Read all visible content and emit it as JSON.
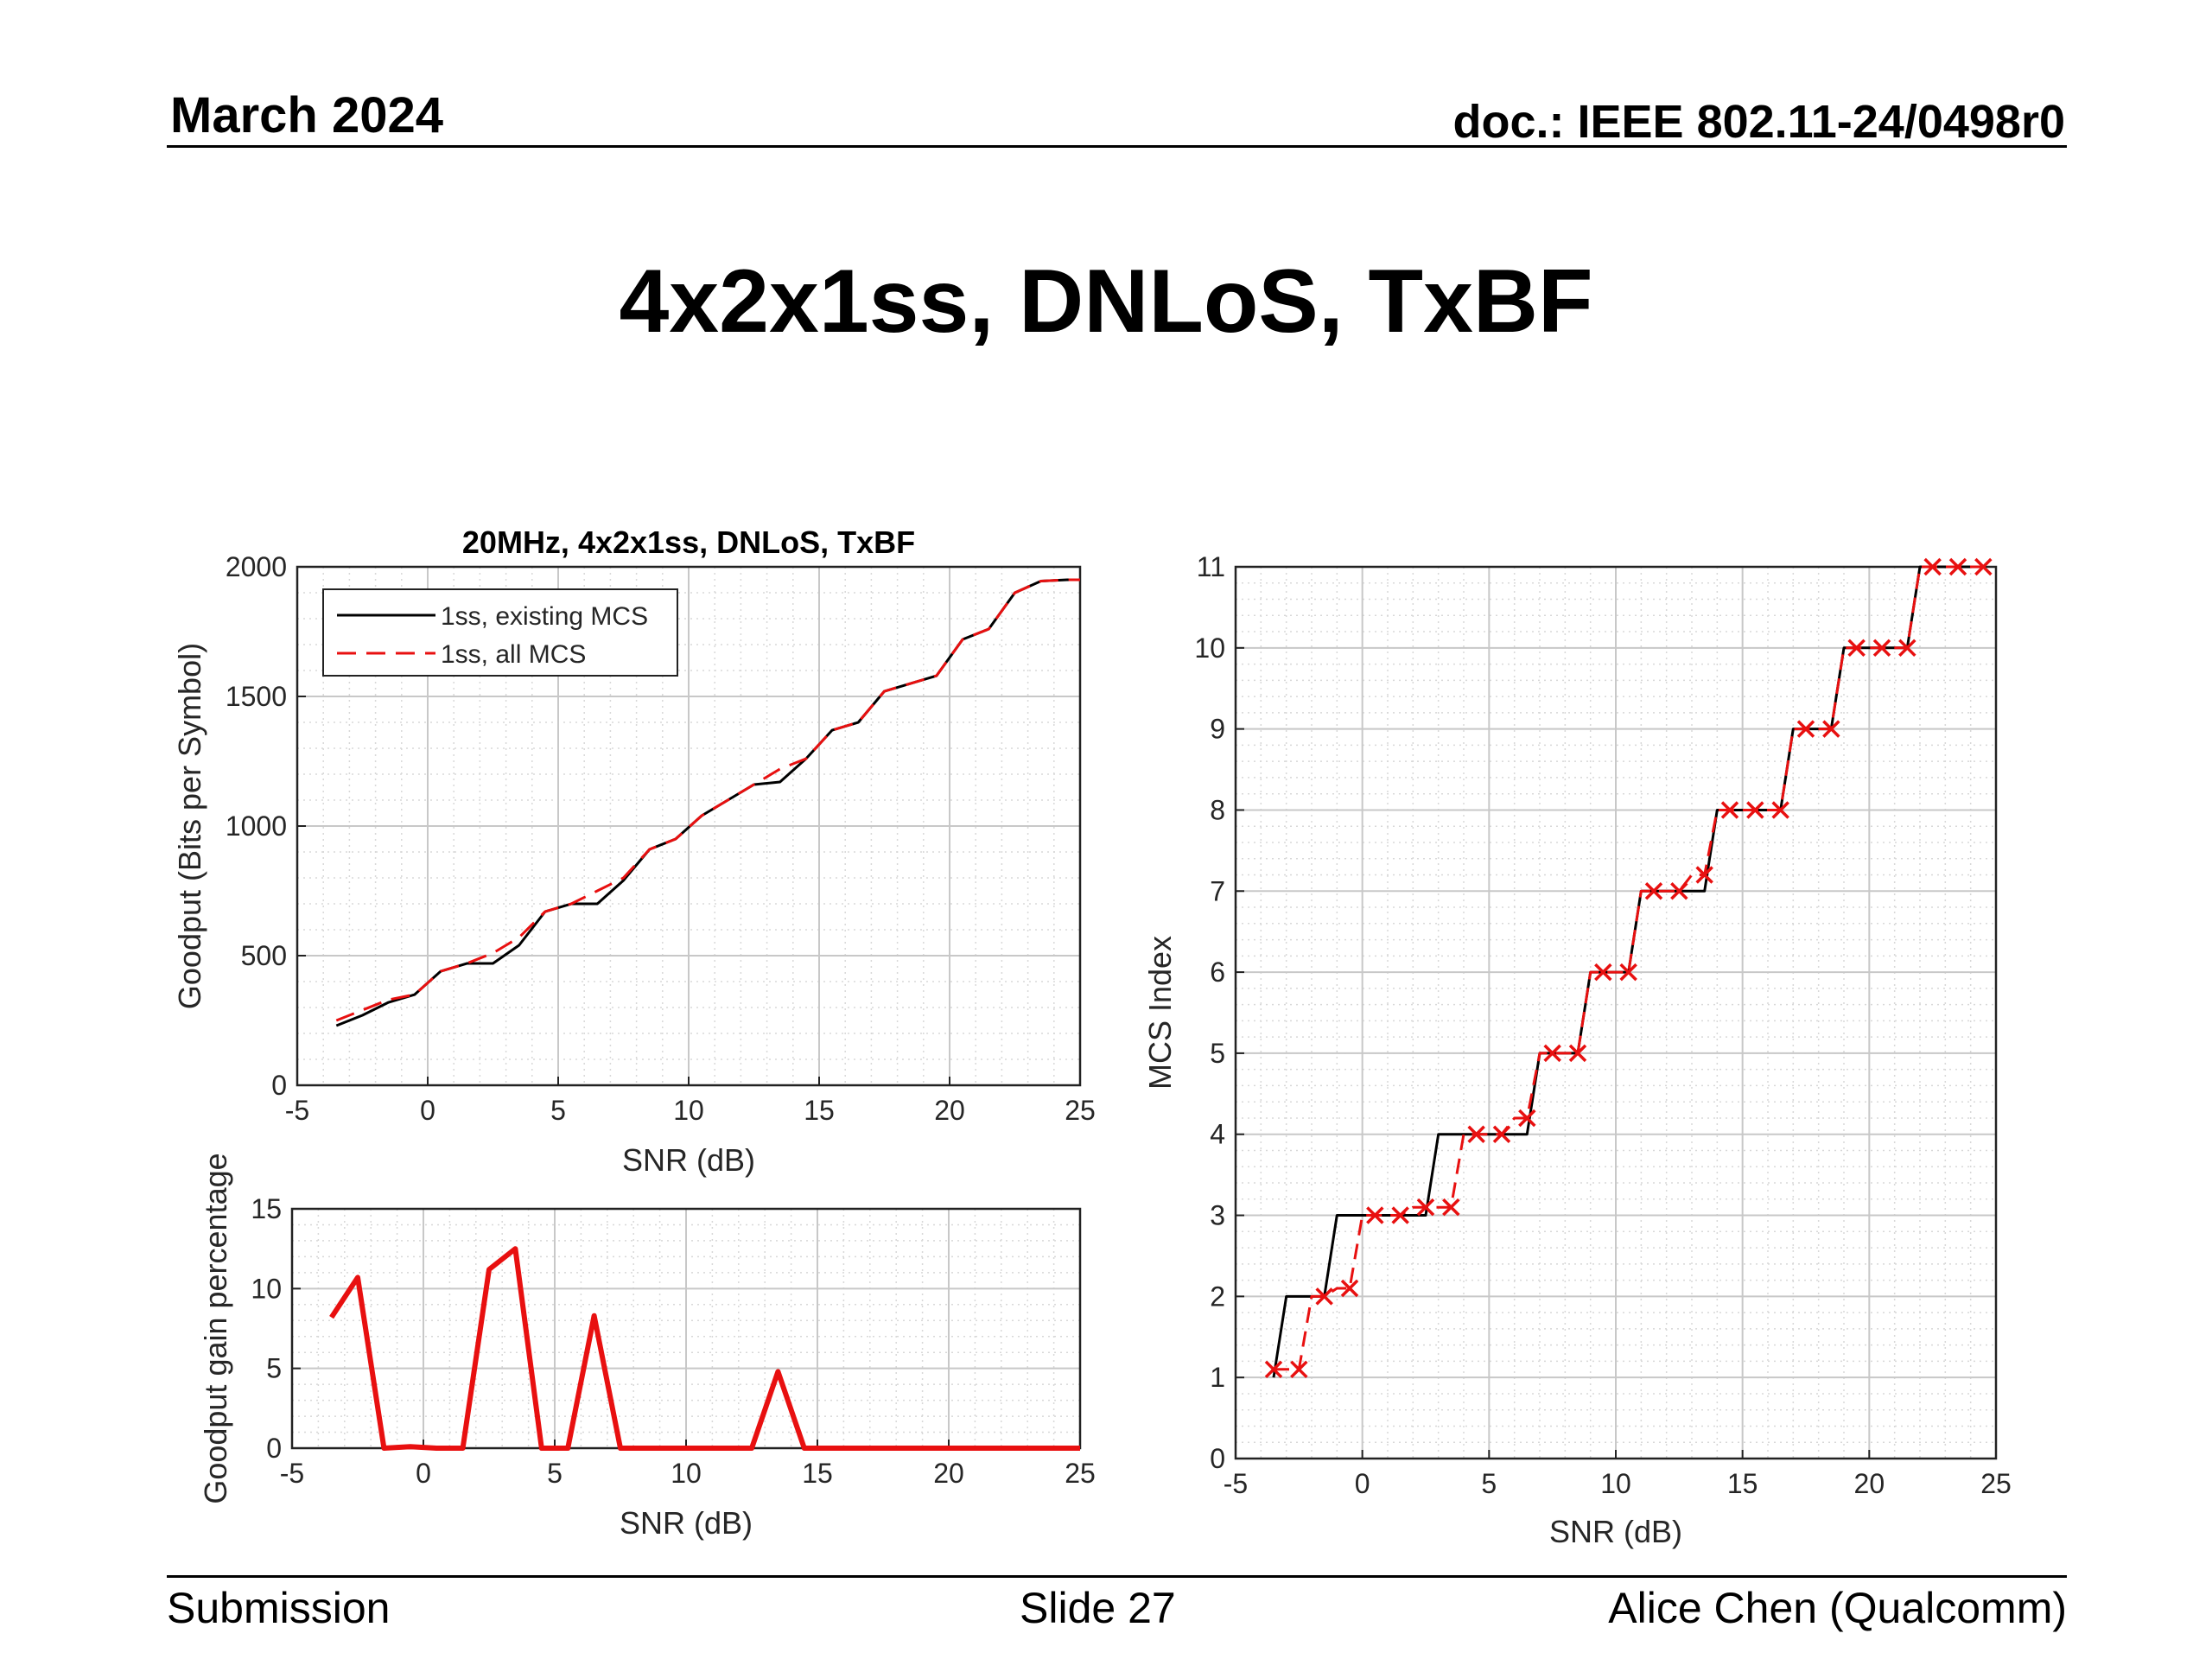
{
  "header": {
    "date": "March 2024",
    "doc": "doc.: IEEE 802.11-24/0498r0"
  },
  "slide": {
    "title": "4x2x1ss, DNLoS, TxBF"
  },
  "footer": {
    "left": "Submission",
    "center": "Slide 27",
    "right": "Alice Chen (Qualcomm)"
  },
  "colors": {
    "existing": "#000000",
    "all": "#e81010",
    "grid": "#c8c8c8"
  },
  "chart_data": [
    {
      "id": "goodput",
      "type": "line",
      "title": "20MHz, 4x2x1ss, DNLoS, TxBF",
      "xlabel": "SNR (dB)",
      "ylabel": "Goodput (Bits per Symbol)",
      "xlim": [
        -5,
        25
      ],
      "ylim": [
        0,
        2000
      ],
      "xticks": [
        -5,
        0,
        5,
        10,
        15,
        20,
        25
      ],
      "yticks": [
        0,
        500,
        1000,
        1500,
        2000
      ],
      "grid": true,
      "legend": "top-left",
      "x": [
        -3.5,
        -2.5,
        -1.5,
        -0.5,
        0.5,
        1.5,
        2.5,
        3.5,
        4.5,
        5.5,
        6.5,
        7.5,
        8.5,
        9.5,
        10.5,
        11.5,
        12.5,
        13.5,
        14.5,
        15.5,
        16.5,
        17.5,
        18.5,
        19.5,
        20.5,
        21.5,
        22.5,
        23.5,
        24.5,
        25
      ],
      "series": [
        {
          "name": "1ss, existing MCS",
          "style": "solid",
          "values": [
            230,
            270,
            320,
            350,
            440,
            470,
            470,
            540,
            670,
            700,
            700,
            790,
            910,
            950,
            1040,
            1100,
            1160,
            1170,
            1260,
            1370,
            1400,
            1520,
            1550,
            1580,
            1720,
            1760,
            1900,
            1945,
            1950,
            1950
          ]
        },
        {
          "name": "1ss, all MCS",
          "style": "dashed",
          "values": [
            250,
            290,
            330,
            350,
            440,
            470,
            510,
            570,
            670,
            700,
            750,
            800,
            910,
            950,
            1040,
            1100,
            1160,
            1220,
            1260,
            1370,
            1400,
            1520,
            1550,
            1580,
            1720,
            1760,
            1900,
            1945,
            1950,
            1950
          ]
        }
      ]
    },
    {
      "id": "gain",
      "type": "line",
      "title": "",
      "xlabel": "SNR (dB)",
      "ylabel": "Goodput gain percentage",
      "xlim": [
        -5,
        25
      ],
      "ylim": [
        0,
        15
      ],
      "xticks": [
        -5,
        0,
        5,
        10,
        15,
        20,
        25
      ],
      "yticks": [
        0,
        5,
        10,
        15
      ],
      "grid": true,
      "x": [
        -3.5,
        -2.5,
        -1.5,
        -0.5,
        0.5,
        1.5,
        2.5,
        3.5,
        4.5,
        5.5,
        6.5,
        7.5,
        8.5,
        9.5,
        10.5,
        11.5,
        12.5,
        13.5,
        14.5,
        15.5,
        16.5,
        17.5,
        18.5,
        19.5,
        20.5,
        21.5,
        22.5,
        23.5,
        24.5,
        25
      ],
      "series": [
        {
          "name": "",
          "style": "solid",
          "values": [
            8.2,
            10.7,
            0,
            0.1,
            0,
            0,
            11.2,
            12.5,
            0,
            0,
            8.3,
            0,
            0,
            0,
            0,
            0,
            0,
            4.8,
            0,
            0,
            0,
            0,
            0,
            0,
            0,
            0,
            0,
            0,
            0,
            0
          ]
        }
      ]
    },
    {
      "id": "mcs",
      "type": "line",
      "title": "",
      "xlabel": "SNR (dB)",
      "ylabel": "MCS Index",
      "xlim": [
        -5,
        25
      ],
      "ylim": [
        0,
        11
      ],
      "xticks": [
        -5,
        0,
        5,
        10,
        15,
        20,
        25
      ],
      "yticks": [
        0,
        1,
        2,
        3,
        4,
        5,
        6,
        7,
        8,
        9,
        10,
        11
      ],
      "grid": true,
      "x": [
        -3.5,
        -2.5,
        -1.5,
        -0.5,
        0.5,
        1.5,
        2.5,
        3.5,
        4.5,
        5.5,
        6.5,
        7.5,
        8.5,
        9.5,
        10.5,
        11.5,
        12.5,
        13.5,
        14.5,
        15.5,
        16.5,
        17.5,
        18.5,
        19.5,
        20.5,
        21.5,
        22.5,
        23.5,
        24.5
      ],
      "series": [
        {
          "name": "existing MCS",
          "style": "solid",
          "values": [
            1,
            2,
            2,
            3,
            3,
            3,
            3,
            4,
            4,
            4,
            4,
            5,
            5,
            6,
            6,
            7,
            7,
            7,
            8,
            8,
            8,
            9,
            9,
            10,
            10,
            10,
            11,
            11,
            11
          ]
        },
        {
          "name": "all MCS",
          "style": "dashed-x",
          "values": [
            1.1,
            1.1,
            2,
            2.1,
            3,
            3,
            3.1,
            3.1,
            4,
            4,
            4.2,
            5,
            5,
            6,
            6,
            7,
            7,
            7.2,
            8,
            8,
            8,
            9,
            9,
            10,
            10,
            10,
            11,
            11,
            11
          ]
        }
      ]
    }
  ]
}
